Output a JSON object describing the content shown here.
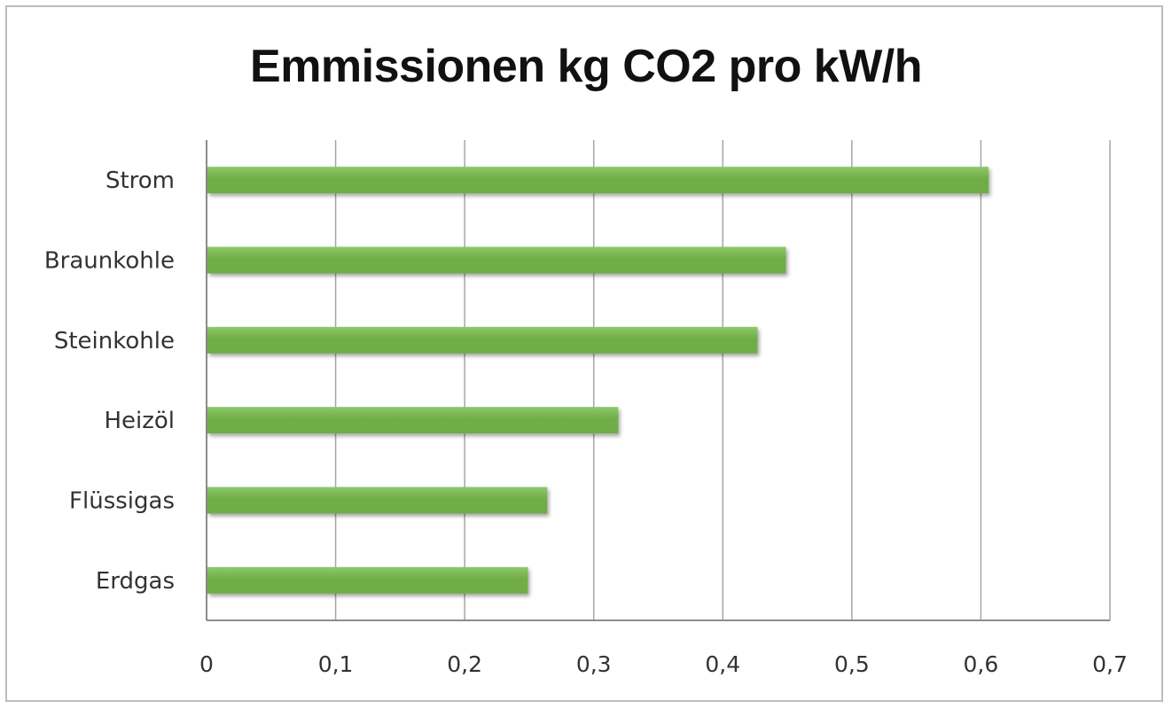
{
  "chart_data": {
    "type": "bar",
    "orientation": "horizontal",
    "title": "Emmissionen kg CO2 pro kW/h",
    "xlabel": "",
    "ylabel": "",
    "categories": [
      "Strom",
      "Braunkohle",
      "Steinkohle",
      "Heizöl",
      "Flüssigas",
      "Erdgas"
    ],
    "values": [
      0.606,
      0.449,
      0.427,
      0.319,
      0.264,
      0.249
    ],
    "xlim": [
      0,
      0.7
    ],
    "xticks": [
      0,
      0.1,
      0.2,
      0.3,
      0.4,
      0.5,
      0.6,
      0.7
    ],
    "xtick_labels": [
      "0",
      "0,1",
      "0,2",
      "0,3",
      "0,4",
      "0,5",
      "0,6",
      "0,7"
    ],
    "grid": "vertical",
    "legend": "none",
    "bar_color": "#70ad47",
    "bar_color_light": "#8ec96a",
    "grid_color": "#a6a6a6"
  }
}
